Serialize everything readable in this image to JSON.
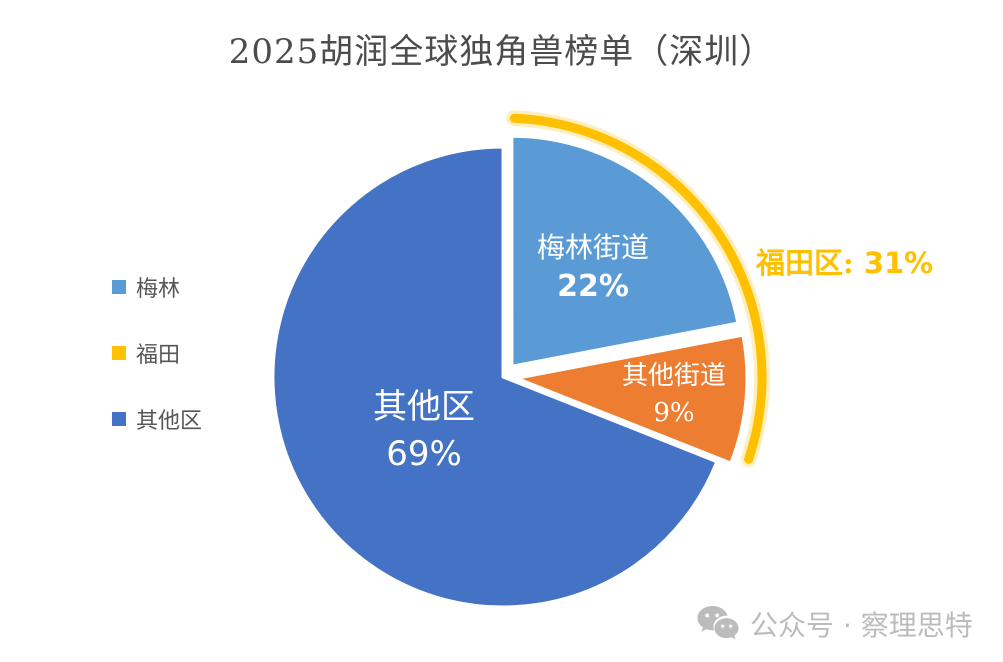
{
  "title": "2025胡润全球独角兽榜单（深圳）",
  "legend": {
    "items": [
      {
        "label": "梅林",
        "color": "#5B9BD5"
      },
      {
        "label": "福田",
        "color": "#FFC000"
      },
      {
        "label": "其他区",
        "color": "#4472C4"
      }
    ]
  },
  "chart_data": {
    "type": "pie",
    "title": "2025胡润全球独角兽榜单（深圳）",
    "legend_position": "left",
    "start_angle_deg": 0,
    "direction": "clockwise",
    "slices": [
      {
        "label": "梅林街道",
        "value": 22,
        "pct": "22%",
        "color": "#5B9BD5",
        "exploded": true
      },
      {
        "label": "其他街道",
        "value": 9,
        "pct": "9%",
        "color": "#ED7D31",
        "exploded": true
      },
      {
        "label": "其他区",
        "value": 69,
        "pct": "69%",
        "color": "#4472C4",
        "exploded": false
      }
    ],
    "annotation": {
      "text": "福田区: 31%",
      "label": "福田区:",
      "value": "31%",
      "color": "#FFC000",
      "arc_color": "#FFC000"
    }
  },
  "callout": {
    "label": "福田区:",
    "value": "31%"
  },
  "watermark": {
    "text": "公众号 · 察理思特"
  },
  "colors": {
    "title_text": "#4c4c4c",
    "legend_text": "#565656",
    "slice_label_text": "#ffffff",
    "watermark": "#bcbcbc",
    "accent_gold": "#FFC000"
  }
}
